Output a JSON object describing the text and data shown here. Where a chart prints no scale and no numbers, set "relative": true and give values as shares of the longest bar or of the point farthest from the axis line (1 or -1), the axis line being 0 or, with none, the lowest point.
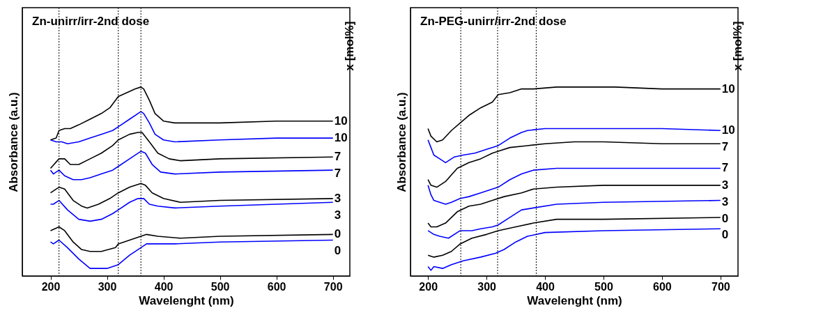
{
  "chart_data": [
    {
      "type": "line",
      "title": "Zn-unirr/irr-2nd dose",
      "xlabel": "Wavelenght (nm)",
      "ylabel": "Absorbance (a.u.)",
      "relative": true,
      "xlim": [
        150,
        730
      ],
      "xticks": [
        200,
        300,
        400,
        500,
        600,
        700
      ],
      "grid": false,
      "legend": false,
      "marker": "none",
      "line_style": "solid",
      "annotations": [
        "x [mol%]"
      ],
      "ref_lines": [
        {
          "axis": "x",
          "value": 215,
          "label": null,
          "line_style": "dotted"
        },
        {
          "axis": "x",
          "value": 320,
          "label": null,
          "line_style": "dotted"
        },
        {
          "axis": "x",
          "value": 360,
          "label": null,
          "line_style": "dotted"
        }
      ],
      "series": [
        {
          "name": "10",
          "color": "#000000",
          "x": [
            200,
            210,
            215,
            225,
            235,
            250,
            270,
            290,
            305,
            320,
            335,
            350,
            360,
            365,
            375,
            385,
            400,
            420,
            450,
            500,
            600,
            700
          ],
          "values": [
            0.72,
            0.73,
            0.77,
            0.78,
            0.78,
            0.8,
            0.83,
            0.86,
            0.89,
            0.95,
            0.97,
            0.99,
            1.0,
            0.99,
            0.93,
            0.86,
            0.82,
            0.81,
            0.81,
            0.81,
            0.82,
            0.82
          ]
        },
        {
          "name": "10",
          "color": "#0000ff",
          "x": [
            200,
            210,
            220,
            230,
            250,
            270,
            290,
            310,
            320,
            340,
            360,
            365,
            375,
            385,
            400,
            420,
            500,
            600,
            700
          ],
          "values": [
            0.72,
            0.71,
            0.71,
            0.7,
            0.71,
            0.73,
            0.75,
            0.77,
            0.79,
            0.83,
            0.87,
            0.86,
            0.81,
            0.75,
            0.72,
            0.71,
            0.72,
            0.73,
            0.73
          ]
        },
        {
          "name": "7",
          "color": "#000000",
          "x": [
            200,
            215,
            225,
            235,
            250,
            270,
            290,
            310,
            320,
            340,
            355,
            362,
            375,
            390,
            410,
            430,
            500,
            700
          ],
          "values": [
            0.57,
            0.62,
            0.62,
            0.59,
            0.59,
            0.62,
            0.65,
            0.69,
            0.72,
            0.75,
            0.76,
            0.76,
            0.71,
            0.65,
            0.62,
            0.61,
            0.62,
            0.63
          ]
        },
        {
          "name": "7",
          "color": "#0000ff",
          "x": [
            200,
            205,
            215,
            225,
            240,
            255,
            270,
            290,
            310,
            320,
            340,
            360,
            368,
            380,
            395,
            420,
            500,
            700
          ],
          "values": [
            0.56,
            0.54,
            0.56,
            0.53,
            0.51,
            0.51,
            0.52,
            0.54,
            0.56,
            0.58,
            0.62,
            0.66,
            0.65,
            0.59,
            0.55,
            0.54,
            0.55,
            0.56
          ]
        },
        {
          "name": "3",
          "color": "#000000",
          "x": [
            200,
            215,
            225,
            240,
            255,
            265,
            285,
            305,
            320,
            340,
            360,
            368,
            380,
            400,
            430,
            500,
            700
          ],
          "values": [
            0.44,
            0.47,
            0.46,
            0.4,
            0.37,
            0.36,
            0.38,
            0.41,
            0.44,
            0.47,
            0.49,
            0.48,
            0.44,
            0.41,
            0.39,
            0.4,
            0.41
          ]
        },
        {
          "name": "3",
          "color": "#0000ff",
          "x": [
            200,
            205,
            215,
            230,
            250,
            270,
            290,
            310,
            320,
            340,
            355,
            365,
            375,
            390,
            420,
            500,
            700
          ],
          "values": [
            0.38,
            0.38,
            0.4,
            0.35,
            0.3,
            0.29,
            0.3,
            0.33,
            0.35,
            0.39,
            0.41,
            0.41,
            0.38,
            0.37,
            0.36,
            0.37,
            0.39
          ]
        },
        {
          "name": "0",
          "color": "#000000",
          "x": [
            200,
            215,
            225,
            240,
            255,
            270,
            290,
            315,
            320,
            340,
            360,
            370,
            390,
            430,
            500,
            700
          ],
          "values": [
            0.24,
            0.26,
            0.24,
            0.18,
            0.14,
            0.13,
            0.13,
            0.15,
            0.17,
            0.19,
            0.21,
            0.22,
            0.21,
            0.2,
            0.21,
            0.22
          ]
        },
        {
          "name": "0",
          "color": "#0000ff",
          "x": [
            200,
            205,
            215,
            230,
            250,
            270,
            285,
            300,
            320,
            340,
            360,
            370,
            400,
            420,
            500,
            700
          ],
          "values": [
            0.18,
            0.17,
            0.19,
            0.15,
            0.09,
            0.04,
            0.04,
            0.04,
            0.06,
            0.11,
            0.15,
            0.17,
            0.17,
            0.17,
            0.18,
            0.19
          ]
        }
      ]
    },
    {
      "type": "line",
      "title": "Zn-PEG-unirr/irr-2nd dose",
      "xlabel": "Wavelenght (nm)",
      "ylabel": "Absorbance (a.u.)",
      "relative": true,
      "xlim": [
        170,
        730
      ],
      "xticks": [
        200,
        300,
        400,
        500,
        600,
        700
      ],
      "grid": false,
      "legend": false,
      "marker": "none",
      "line_style": "solid",
      "annotations": [
        "x [mol%]"
      ],
      "ref_lines": [
        {
          "axis": "x",
          "value": 256,
          "label": null,
          "line_style": "dotted"
        },
        {
          "axis": "x",
          "value": 319,
          "label": null,
          "line_style": "dotted"
        },
        {
          "axis": "x",
          "value": 385,
          "label": null,
          "line_style": "dotted"
        }
      ],
      "series": [
        {
          "name": "10",
          "color": "#000000",
          "x": [
            200,
            205,
            215,
            225,
            240,
            255,
            270,
            290,
            310,
            320,
            340,
            360,
            380,
            420,
            470,
            520,
            600,
            700
          ],
          "values": [
            0.78,
            0.74,
            0.71,
            0.72,
            0.77,
            0.81,
            0.85,
            0.89,
            0.92,
            0.96,
            0.97,
            0.99,
            0.99,
            1.0,
            1.0,
            1.0,
            0.99,
            0.99
          ]
        },
        {
          "name": "10",
          "color": "#0000ff",
          "x": [
            200,
            205,
            210,
            220,
            230,
            245,
            260,
            280,
            300,
            320,
            340,
            360,
            370,
            400,
            450,
            500,
            600,
            700
          ],
          "values": [
            0.72,
            0.68,
            0.64,
            0.62,
            0.6,
            0.63,
            0.64,
            0.65,
            0.67,
            0.69,
            0.73,
            0.76,
            0.77,
            0.78,
            0.78,
            0.78,
            0.78,
            0.77
          ]
        },
        {
          "name": "7",
          "color": "#000000",
          "x": [
            200,
            205,
            215,
            230,
            250,
            270,
            290,
            310,
            320,
            340,
            370,
            400,
            450,
            500,
            600,
            700
          ],
          "values": [
            0.51,
            0.48,
            0.47,
            0.5,
            0.57,
            0.6,
            0.62,
            0.65,
            0.66,
            0.68,
            0.69,
            0.7,
            0.71,
            0.71,
            0.7,
            0.7
          ]
        },
        {
          "name": "7",
          "color": "#0000ff",
          "x": [
            200,
            205,
            210,
            220,
            230,
            240,
            255,
            270,
            290,
            310,
            320,
            340,
            360,
            380,
            420,
            500,
            700
          ],
          "values": [
            0.48,
            0.43,
            0.4,
            0.39,
            0.38,
            0.39,
            0.41,
            0.42,
            0.44,
            0.46,
            0.47,
            0.51,
            0.54,
            0.56,
            0.57,
            0.57,
            0.57
          ]
        },
        {
          "name": "3",
          "color": "#000000",
          "x": [
            200,
            205,
            215,
            230,
            250,
            270,
            290,
            310,
            330,
            360,
            380,
            420,
            500,
            700
          ],
          "values": [
            0.28,
            0.26,
            0.26,
            0.28,
            0.34,
            0.37,
            0.38,
            0.4,
            0.42,
            0.44,
            0.46,
            0.47,
            0.48,
            0.48
          ]
        },
        {
          "name": "3",
          "color": "#0000ff",
          "x": [
            200,
            210,
            220,
            235,
            255,
            275,
            290,
            310,
            320,
            340,
            360,
            380,
            420,
            500,
            700
          ],
          "values": [
            0.24,
            0.22,
            0.21,
            0.2,
            0.24,
            0.24,
            0.25,
            0.26,
            0.27,
            0.31,
            0.35,
            0.36,
            0.38,
            0.39,
            0.4
          ]
        },
        {
          "name": "0",
          "color": "#000000",
          "x": [
            200,
            210,
            225,
            240,
            255,
            275,
            300,
            320,
            350,
            380,
            420,
            500,
            700
          ],
          "values": [
            0.11,
            0.1,
            0.11,
            0.13,
            0.17,
            0.2,
            0.22,
            0.24,
            0.26,
            0.28,
            0.3,
            0.3,
            0.31
          ]
        },
        {
          "name": "0",
          "color": "#0000ff",
          "x": [
            200,
            205,
            210,
            225,
            240,
            260,
            290,
            315,
            330,
            350,
            370,
            400,
            500,
            700
          ],
          "values": [
            0.05,
            0.03,
            0.05,
            0.04,
            0.06,
            0.08,
            0.1,
            0.12,
            0.14,
            0.18,
            0.21,
            0.23,
            0.24,
            0.25
          ]
        }
      ]
    }
  ]
}
